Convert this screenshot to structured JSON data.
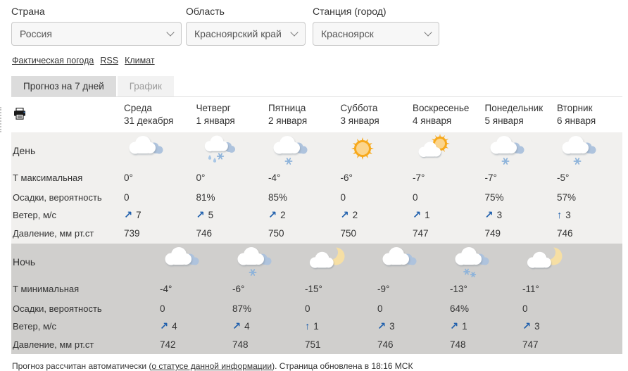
{
  "header": {
    "country": {
      "label": "Страна",
      "value": "Россия"
    },
    "region": {
      "label": "Область",
      "value": "Красноярский край"
    },
    "station": {
      "label": "Станция (город)",
      "value": "Красноярск"
    }
  },
  "links": {
    "actual": "Фактическая погода",
    "rss": "RSS",
    "climate": "Климат"
  },
  "tabs": {
    "forecast": "Прогноз на 7 дней",
    "chart": "График"
  },
  "forecast": {
    "columns": [
      {
        "day": "Среда",
        "date": "31 декабря"
      },
      {
        "day": "Четверг",
        "date": "1 января"
      },
      {
        "day": "Пятница",
        "date": "2 января"
      },
      {
        "day": "Суббота",
        "date": "3 января"
      },
      {
        "day": "Воскресенье",
        "date": "4 января"
      },
      {
        "day": "Понедельник",
        "date": "5 января"
      },
      {
        "day": "Вторник",
        "date": "6 января"
      }
    ],
    "day": {
      "label": "День",
      "icons": [
        "cloudy",
        "rain-snow",
        "snow",
        "sun",
        "sun-cloud",
        "snow",
        "snow"
      ],
      "tmax": {
        "label": "Т максимальная",
        "values": [
          "0°",
          "0°",
          "-4°",
          "-6°",
          "-7°",
          "-7°",
          "-5°"
        ]
      },
      "precip": {
        "label": "Осадки, вероятность",
        "values": [
          "0",
          "81%",
          "85%",
          "0",
          "0",
          "75%",
          "57%"
        ]
      },
      "wind": {
        "label": "Ветер, м/с",
        "values": [
          {
            "dir": "↗",
            "speed": "7"
          },
          {
            "dir": "↗",
            "speed": "5"
          },
          {
            "dir": "↗",
            "speed": "2"
          },
          {
            "dir": "↗",
            "speed": "2"
          },
          {
            "dir": "↗",
            "speed": "1"
          },
          {
            "dir": "↗",
            "speed": "3"
          },
          {
            "dir": "↑",
            "speed": "3"
          }
        ]
      },
      "pressure": {
        "label": "Давление, мм рт.ст",
        "values": [
          "739",
          "746",
          "750",
          "750",
          "747",
          "749",
          "746"
        ]
      }
    },
    "night": {
      "label": "Ночь",
      "icons": [
        "cloudy",
        "snow",
        "moon-cloud",
        "cloudy",
        "snow2",
        "moon-cloud"
      ],
      "tmin": {
        "label": "Т минимальная",
        "values": [
          "-4°",
          "-6°",
          "-15°",
          "-9°",
          "-13°",
          "-11°"
        ]
      },
      "precip": {
        "label": "Осадки, вероятность",
        "values": [
          "0",
          "87%",
          "0",
          "0",
          "64%",
          "0"
        ]
      },
      "wind": {
        "label": "Ветер, м/с",
        "values": [
          {
            "dir": "↗",
            "speed": "4"
          },
          {
            "dir": "↗",
            "speed": "4"
          },
          {
            "dir": "↑",
            "speed": "1"
          },
          {
            "dir": "↗",
            "speed": "3"
          },
          {
            "dir": "↗",
            "speed": "1"
          },
          {
            "dir": "↗",
            "speed": "3"
          }
        ]
      },
      "pressure": {
        "label": "Давление, мм рт.ст",
        "values": [
          "742",
          "748",
          "751",
          "746",
          "748",
          "747"
        ]
      }
    }
  },
  "footer": {
    "prefix": "Прогноз рассчитан автоматически (",
    "link": "о статусе данной информации",
    "suffix": "). Страница обновлена в 18:16 МСК"
  },
  "colors": {
    "wind_arrow": "#2060ad",
    "day_section_bg": "#f1f0ee",
    "night_section_bg": "#d0cfcd",
    "sun": "#f7a91c",
    "moon": "#f6dfa4",
    "snowflake": "#8db3da",
    "back_cloud": "#aec3dd"
  }
}
